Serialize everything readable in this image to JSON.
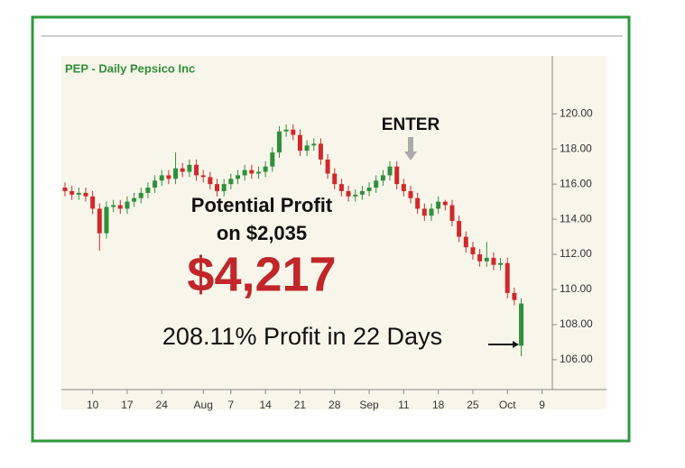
{
  "chart_data": {
    "type": "candlestick",
    "title": "PEP - Daily  Pepsico Inc",
    "categories": [
      null,
      null,
      null,
      null,
      "10",
      null,
      null,
      null,
      null,
      "17",
      null,
      null,
      null,
      null,
      "24",
      null,
      null,
      null,
      null,
      null,
      "Aug",
      null,
      null,
      null,
      "7",
      null,
      null,
      null,
      null,
      "14",
      null,
      null,
      null,
      null,
      "21",
      null,
      null,
      null,
      null,
      "28",
      null,
      null,
      null,
      null,
      "Sep",
      null,
      null,
      null,
      null,
      "11",
      null,
      null,
      null,
      null,
      "18",
      null,
      null,
      null,
      null,
      "25",
      null,
      null,
      null,
      null,
      "Oct",
      null,
      null,
      null,
      null,
      "9"
    ],
    "open": [
      115.8,
      115.6,
      115.4,
      115.5,
      115.3,
      114.6,
      113.2,
      114.7,
      114.8,
      114.6,
      115,
      115.2,
      115.5,
      115.8,
      116.2,
      116.5,
      116.3,
      116.9,
      116.7,
      117.1,
      116.5,
      116.4,
      116,
      115.6,
      116,
      116.3,
      116.5,
      116.8,
      116.6,
      116.7,
      117,
      117.8,
      119,
      119.1,
      118.8,
      117.9,
      118.2,
      118.3,
      117.4,
      116.6,
      116,
      115.6,
      115.3,
      115.4,
      115.6,
      115.8,
      116.2,
      116.5,
      117,
      116,
      115.6,
      115.2,
      114.6,
      114.2,
      114.6,
      115,
      114.8,
      113.9,
      113,
      112.4,
      112,
      111.6,
      111.8,
      111.4,
      111.5,
      109.8,
      106.8,
      null,
      null,
      null
    ],
    "high": [
      116.1,
      115.9,
      115.8,
      115.8,
      115.6,
      114.9,
      115,
      115.1,
      115.1,
      115.3,
      115.5,
      115.8,
      116.1,
      116.5,
      116.8,
      116.8,
      117.8,
      117.2,
      117.4,
      117.4,
      116.8,
      116.7,
      116.3,
      116.3,
      116.6,
      116.8,
      117.1,
      117.1,
      117,
      117.3,
      118.1,
      119.3,
      119.4,
      119.4,
      119.1,
      118.5,
      118.6,
      118.6,
      117.7,
      116.9,
      116.3,
      115.9,
      115.7,
      115.9,
      116.1,
      116.5,
      116.8,
      117.3,
      117.3,
      116.3,
      115.9,
      115.5,
      114.9,
      114.9,
      115.3,
      115.1,
      115.1,
      114.2,
      113.3,
      112.7,
      112.3,
      112.7,
      112.1,
      111.8,
      111.8,
      110.1,
      109.5,
      null,
      null,
      null
    ],
    "low": [
      115.3,
      115.1,
      115.1,
      115,
      114.3,
      112.2,
      112.9,
      114.4,
      114.3,
      114.3,
      114.7,
      114.9,
      115.2,
      115.5,
      115.9,
      116,
      116,
      116.4,
      116.4,
      116.2,
      116.1,
      115.7,
      115.3,
      115.3,
      115.7,
      116,
      116.2,
      116.3,
      116.3,
      116.4,
      116.7,
      117.5,
      118.7,
      118.5,
      117.6,
      117.6,
      117.9,
      117.1,
      116.3,
      115.7,
      115.3,
      115,
      115,
      115.1,
      115.3,
      115.5,
      115.9,
      116.2,
      115.7,
      115.3,
      114.9,
      114.3,
      113.9,
      113.9,
      114.3,
      114.5,
      113.6,
      112.7,
      112.1,
      111.7,
      111.3,
      111.3,
      111.1,
      111.1,
      109.5,
      109.1,
      106.2,
      null,
      null,
      null
    ],
    "close": [
      115.6,
      115.4,
      115.5,
      115.3,
      114.6,
      113.2,
      114.7,
      114.8,
      114.6,
      115,
      115.2,
      115.5,
      115.8,
      116.2,
      116.5,
      116.3,
      116.9,
      116.7,
      117.1,
      116.5,
      116.4,
      116,
      115.6,
      116,
      116.3,
      116.5,
      116.8,
      116.6,
      116.7,
      117,
      117.8,
      119,
      119.1,
      118.8,
      117.9,
      118.2,
      118.3,
      117.4,
      116.6,
      116,
      115.6,
      115.3,
      115.4,
      115.6,
      115.8,
      116.2,
      116.5,
      117,
      116,
      115.6,
      115.2,
      114.6,
      114.2,
      114.6,
      115,
      114.8,
      113.9,
      113,
      112.4,
      112,
      111.6,
      111.8,
      111.4,
      111.5,
      109.8,
      109.4,
      109.2,
      null,
      null,
      null
    ],
    "up_color": "#2f8f3a",
    "down_color": "#d0292b",
    "ylim": [
      104.3,
      123.3
    ],
    "yticks": [
      {
        "value": 106,
        "label": "106.00"
      },
      {
        "value": 108,
        "label": "108.00"
      },
      {
        "value": 110,
        "label": "110.00"
      },
      {
        "value": 112,
        "label": "112.00"
      },
      {
        "value": 114,
        "label": "114.00"
      },
      {
        "value": 116,
        "label": "116.00"
      },
      {
        "value": 118,
        "label": "118.00"
      },
      {
        "value": 120,
        "label": "120.00"
      }
    ],
    "annotations": {
      "enter": "ENTER",
      "potential_profit": "Potential Profit",
      "on_amount": "on $2,035",
      "profit": "$4,217",
      "summary": "208.11% Profit in 22 Days"
    }
  }
}
